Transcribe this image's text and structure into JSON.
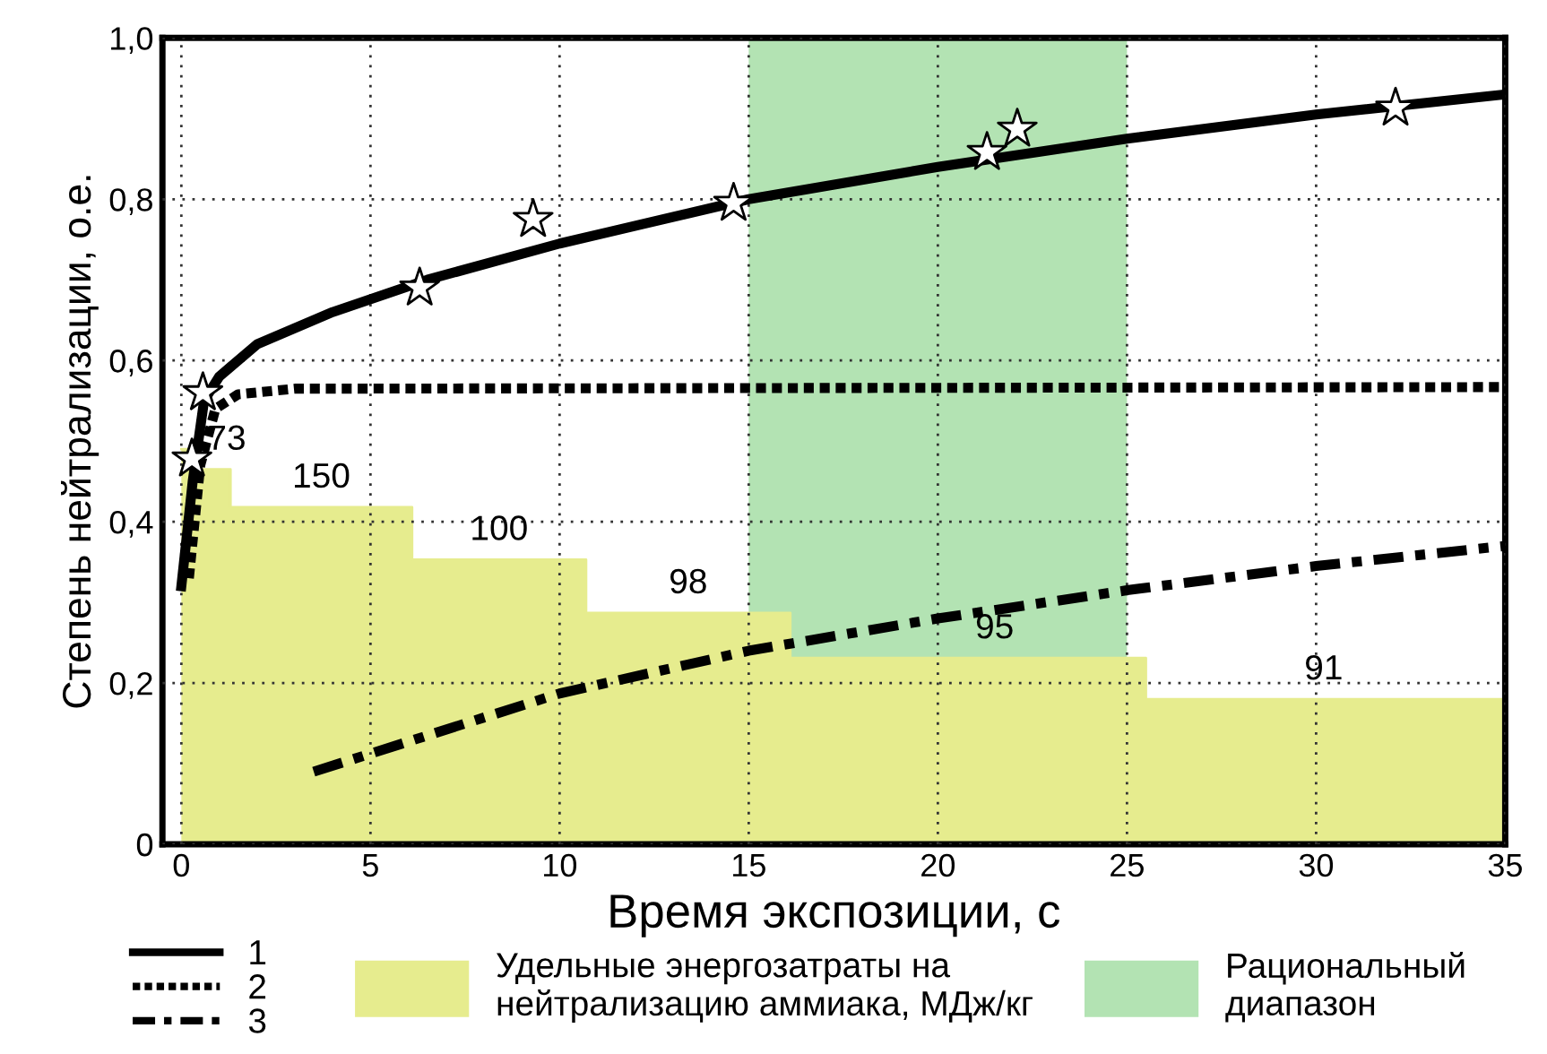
{
  "chart_data": {
    "type": "line",
    "xlabel": "Время экспозиции, с",
    "ylabel": "Степень нейтрализации, о.е.",
    "xlim": [
      -0.5,
      35
    ],
    "ylim": [
      0,
      1
    ],
    "xticks": [
      0,
      5,
      10,
      15,
      20,
      25,
      30,
      35
    ],
    "yticks": [
      {
        "value": 0,
        "label": "0"
      },
      {
        "value": 0.2,
        "label": "0,2"
      },
      {
        "value": 0.4,
        "label": "0,4"
      },
      {
        "value": 0.6,
        "label": "0,6"
      },
      {
        "value": 0.8,
        "label": "0,8"
      },
      {
        "value": 1.0,
        "label": "1,0"
      }
    ],
    "grid": true,
    "legend": "bottom",
    "bands": [
      {
        "axis": "x",
        "from": 15,
        "to": 25,
        "label": "Рациональный\nдиапазон",
        "color": "#b3e3b3"
      }
    ],
    "series": [
      {
        "type": "area",
        "name": "Удельные энергозатраты на\nнейтрализацию аммиака, МДж/кг",
        "color": "#e6ec8e",
        "x": [
          0,
          0.5,
          0.5,
          1.3,
          1.3,
          6.1,
          6.1,
          10.7,
          10.7,
          16.1,
          16.1,
          25.5,
          25.5,
          35
        ],
        "values": [
          0.49,
          0.49,
          0.465,
          0.465,
          0.418,
          0.418,
          0.353,
          0.353,
          0.287,
          0.287,
          0.231,
          0.231,
          0.18,
          0.18
        ]
      },
      {
        "name": "1",
        "color": "#000000",
        "line_style": "solid",
        "x": [
          0,
          0.3,
          0.6,
          1,
          2,
          4,
          6.5,
          10,
          15,
          20,
          25,
          30,
          35
        ],
        "values": [
          0.32,
          0.45,
          0.55,
          0.58,
          0.62,
          0.66,
          0.7,
          0.745,
          0.8,
          0.84,
          0.875,
          0.905,
          0.93
        ]
      },
      {
        "name": "2",
        "color": "#000000",
        "line_style": "dotted",
        "x": [
          0.2,
          0.5,
          0.9,
          1.5,
          3,
          35
        ],
        "values": [
          0.33,
          0.47,
          0.54,
          0.558,
          0.565,
          0.567
        ]
      },
      {
        "name": "3",
        "color": "#000000",
        "line_style": "dashdot",
        "x": [
          3.5,
          10,
          15,
          20,
          25,
          30,
          35
        ],
        "values": [
          0.09,
          0.187,
          0.24,
          0.28,
          0.315,
          0.345,
          0.37
        ]
      },
      {
        "type": "scatter",
        "color": "#ffffff",
        "marker": "star",
        "x": [
          0.28,
          0.57,
          6.3,
          9.3,
          14.6,
          21.3,
          22.1,
          32.1
        ],
        "values": [
          0.478,
          0.56,
          0.69,
          0.775,
          0.795,
          0.858,
          0.887,
          0.913
        ]
      }
    ],
    "annotations": [
      {
        "text": "73",
        "x": 1.2,
        "y": 0.465
      },
      {
        "text": "150",
        "x": 3.7,
        "y": 0.418
      },
      {
        "text": "100",
        "x": 8.4,
        "y": 0.353
      },
      {
        "text": "98",
        "x": 13.4,
        "y": 0.287
      },
      {
        "text": "95",
        "x": 21.5,
        "y": 0.231
      },
      {
        "text": "91",
        "x": 30.2,
        "y": 0.18
      }
    ]
  }
}
